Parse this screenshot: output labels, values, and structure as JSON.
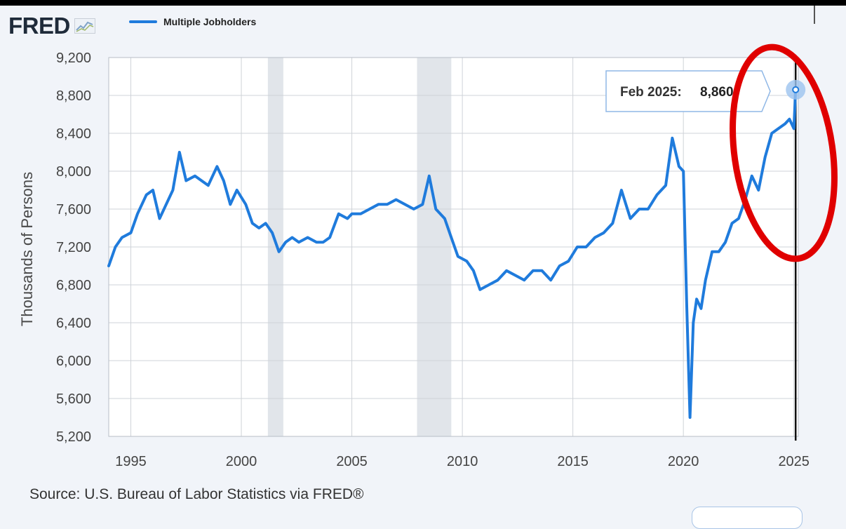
{
  "app": {
    "logo_text": "FRED",
    "logo_icon": "line-graph-icon",
    "legend_label": "Multiple Jobholders",
    "source_text": "Source: U.S. Bureau of Labor Statistics via FRED®"
  },
  "colors": {
    "series": "#1f7bdc",
    "recession": "#e1e5ea",
    "grid": "#cfd3d8",
    "annotation_circle": "#e00000",
    "background": "#f1f4f9",
    "plot_bg": "#ffffff"
  },
  "tooltip": {
    "label": "Feb 2025:",
    "value": "8,860"
  },
  "chart_data": {
    "type": "line",
    "title": "",
    "xlabel": "",
    "ylabel": "Thousands of Persons",
    "ylim": [
      5200,
      9200
    ],
    "xlim": [
      1994.0,
      2025.2
    ],
    "yticks": [
      5200,
      5600,
      6000,
      6400,
      6800,
      7200,
      7600,
      8000,
      8400,
      8800,
      9200
    ],
    "ytick_labels": [
      "5,200",
      "5,600",
      "6,000",
      "6,400",
      "6,800",
      "7,200",
      "7,600",
      "8,000",
      "8,400",
      "8,800",
      "9,200"
    ],
    "xticks": [
      1995,
      2000,
      2005,
      2010,
      2015,
      2020,
      2025
    ],
    "xtick_labels": [
      "1995",
      "2000",
      "2005",
      "2010",
      "2015",
      "2020",
      "2025"
    ],
    "grid": true,
    "legend_position": "top-left",
    "recessions": [
      [
        2001.2,
        2001.9
      ],
      [
        2007.95,
        2009.5
      ]
    ],
    "highlight": {
      "x": 2025.08,
      "y": 8860,
      "label": "Feb 2025",
      "value": "8,860"
    },
    "series": [
      {
        "name": "Multiple Jobholders",
        "x": [
          1994.0,
          1994.3,
          1994.6,
          1995.0,
          1995.3,
          1995.7,
          1996.0,
          1996.3,
          1996.6,
          1996.9,
          1997.2,
          1997.5,
          1997.9,
          1998.2,
          1998.5,
          1998.9,
          1999.2,
          1999.5,
          1999.8,
          2000.2,
          2000.5,
          2000.8,
          2001.1,
          2001.4,
          2001.7,
          2002.0,
          2002.3,
          2002.6,
          2003.0,
          2003.4,
          2003.7,
          2004.0,
          2004.4,
          2004.8,
          2005.0,
          2005.4,
          2005.8,
          2006.2,
          2006.6,
          2007.0,
          2007.4,
          2007.8,
          2008.2,
          2008.5,
          2008.8,
          2009.2,
          2009.5,
          2009.8,
          2010.2,
          2010.5,
          2010.8,
          2011.2,
          2011.6,
          2012.0,
          2012.4,
          2012.8,
          2013.2,
          2013.6,
          2014.0,
          2014.4,
          2014.8,
          2015.2,
          2015.6,
          2016.0,
          2016.4,
          2016.8,
          2017.2,
          2017.6,
          2018.0,
          2018.4,
          2018.8,
          2019.2,
          2019.5,
          2019.8,
          2020.0,
          2020.15,
          2020.3,
          2020.45,
          2020.6,
          2020.8,
          2021.0,
          2021.3,
          2021.6,
          2021.9,
          2022.2,
          2022.5,
          2022.8,
          2023.1,
          2023.4,
          2023.7,
          2024.0,
          2024.3,
          2024.6,
          2024.8,
          2025.0,
          2025.08
        ],
        "values": [
          7000,
          7200,
          7300,
          7350,
          7550,
          7750,
          7800,
          7500,
          7650,
          7800,
          8200,
          7900,
          7950,
          7900,
          7850,
          8050,
          7900,
          7650,
          7800,
          7650,
          7450,
          7400,
          7450,
          7350,
          7150,
          7250,
          7300,
          7250,
          7300,
          7250,
          7250,
          7300,
          7550,
          7500,
          7550,
          7550,
          7600,
          7650,
          7650,
          7700,
          7650,
          7600,
          7650,
          7950,
          7600,
          7500,
          7300,
          7100,
          7050,
          6950,
          6750,
          6800,
          6850,
          6950,
          6900,
          6850,
          6950,
          6950,
          6850,
          7000,
          7050,
          7200,
          7200,
          7300,
          7350,
          7450,
          7800,
          7500,
          7600,
          7600,
          7750,
          7850,
          8350,
          8050,
          8000,
          6600,
          5400,
          6400,
          6650,
          6550,
          6850,
          7150,
          7150,
          7250,
          7450,
          7500,
          7700,
          7950,
          7800,
          8150,
          8400,
          8450,
          8500,
          8550,
          8450,
          8860
        ]
      }
    ]
  }
}
